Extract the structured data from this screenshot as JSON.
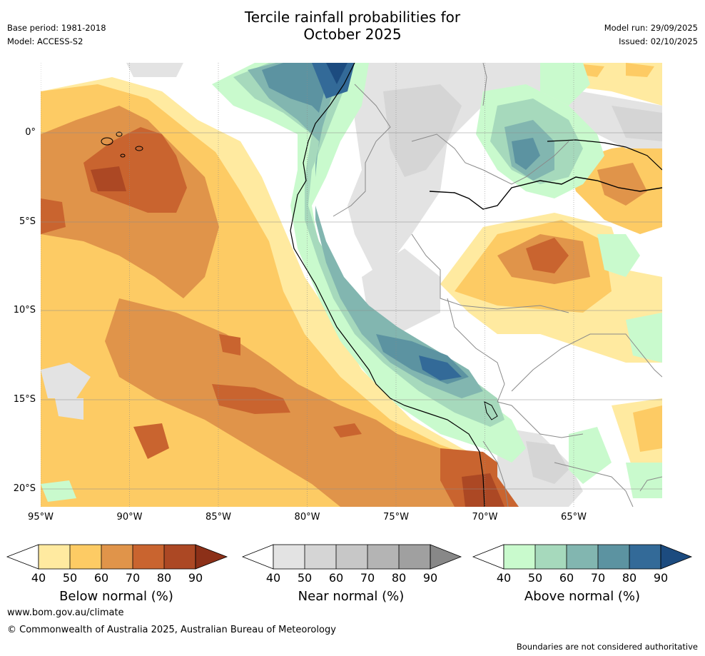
{
  "header": {
    "title_line1": "Tercile rainfall probabilities for",
    "title_line2": "October 2025",
    "base_period": "Base period: 1981-2018",
    "model": "Model: ACCESS-S2",
    "model_run": "Model run: 29/09/2025",
    "issued": "Issued: 02/10/2025"
  },
  "map": {
    "lat_labels": [
      "0°",
      "5°S",
      "10°S",
      "15°S",
      "20°S"
    ],
    "lon_labels": [
      "95°W",
      "90°W",
      "85°W",
      "80°W",
      "75°W",
      "70°W",
      "65°W"
    ],
    "palette": {
      "below": [
        "#ffeaa0",
        "#fdcb64",
        "#e0944a",
        "#c9642f",
        "#ac4824",
        "#8c3018"
      ],
      "near": [
        "#e3e3e3",
        "#d5d5d5",
        "#c7c7c7",
        "#b4b4b4",
        "#a0a0a0",
        "#888888"
      ],
      "above": [
        "#c9facd",
        "#a6d9bc",
        "#82b6b0",
        "#5c93a1",
        "#336a98",
        "#1c4b7f"
      ],
      "coast": "#000000",
      "border": "#8a8a8a"
    }
  },
  "legends": [
    {
      "label": "Below normal (%)",
      "ticks": [
        "40",
        "50",
        "60",
        "70",
        "80",
        "90"
      ]
    },
    {
      "label": "Near normal (%)",
      "ticks": [
        "40",
        "50",
        "60",
        "70",
        "80",
        "90"
      ]
    },
    {
      "label": "Above normal (%)",
      "ticks": [
        "40",
        "50",
        "60",
        "70",
        "80",
        "90"
      ]
    }
  ],
  "footer": {
    "website": "www.bom.gov.au/climate",
    "copyright": "© Commonwealth of Australia 2025, Australian Bureau of Meteorology",
    "disclaimer": "Boundaries are not considered authoritative"
  }
}
